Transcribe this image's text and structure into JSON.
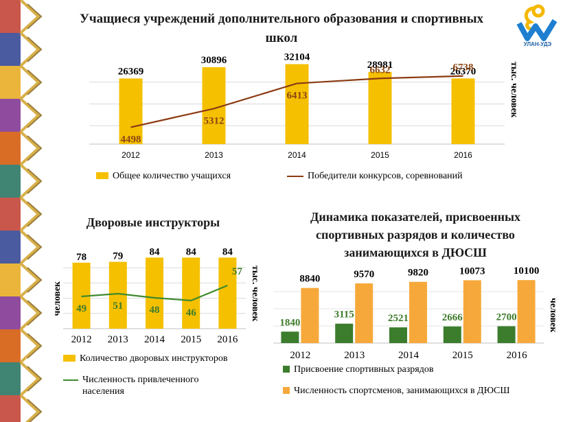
{
  "logo_text": "УЛАН-УДЭ",
  "colors": {
    "bar_yellow": "#f5c000",
    "line_brown": "#8b3a12",
    "line_green": "#3d8a2e",
    "bar_green": "#3b7d2c",
    "bar_orange": "#f6a93a",
    "label_brown": "#8b4513",
    "label_green": "#3d7a2a"
  },
  "chart_data": [
    {
      "type": "bar",
      "title": "Учащиеся учреждений дополнительного образования и спортивных школ",
      "ylabel": "тыс. человек",
      "categories": [
        "2012",
        "2013",
        "2014",
        "2015",
        "2016"
      ],
      "series": [
        {
          "name": "Общее количество учащихся",
          "type": "bar",
          "values": [
            26369,
            30896,
            32104,
            28981,
            26370
          ]
        },
        {
          "name": "Победители конкурсов, соревнований",
          "type": "line",
          "values": [
            4498,
            5312,
            6413,
            6632,
            6738
          ]
        }
      ],
      "grid": true,
      "legend": "bottom"
    },
    {
      "type": "bar",
      "title": "Дворовые инструкторы",
      "ylabel": "человек",
      "y2label": "тыс. человек",
      "categories": [
        "2012",
        "2013",
        "2014",
        "2015",
        "2016"
      ],
      "series": [
        {
          "name": "Количество дворовых инструкторов",
          "type": "bar",
          "values": [
            78,
            79,
            84,
            84,
            84
          ]
        },
        {
          "name": "Численность привлеченного населения",
          "type": "line",
          "values": [
            49,
            51,
            48,
            46,
            57
          ]
        }
      ],
      "grid": true,
      "legend": "bottom"
    },
    {
      "type": "bar",
      "title": "Динамика показателей, присвоенных спортивных разрядов и количество занимающихся в ДЮСШ",
      "ylabel": "человек",
      "categories": [
        "2012",
        "2013",
        "2014",
        "2015",
        "2016"
      ],
      "series": [
        {
          "name": "Присвоение спортивных разрядов",
          "values": [
            1840,
            3115,
            2521,
            2666,
            2700
          ]
        },
        {
          "name": "Численность спортсменов, занимающихся в ДЮСШ",
          "values": [
            8840,
            9570,
            9820,
            10073,
            10100
          ]
        }
      ],
      "grid": true,
      "legend": "bottom"
    }
  ]
}
